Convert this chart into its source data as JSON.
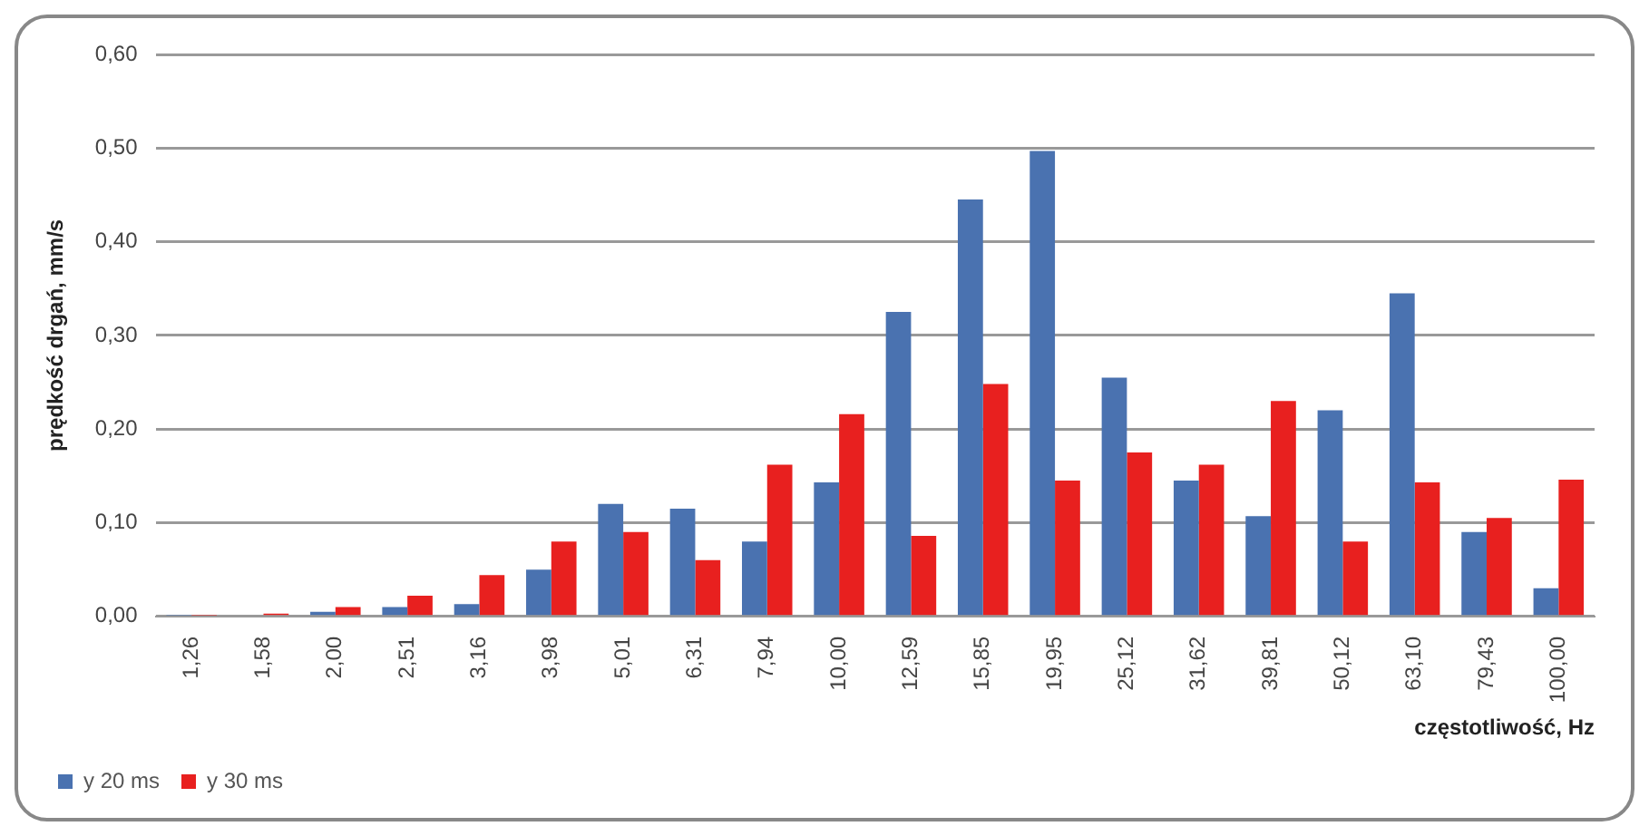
{
  "chart_data": {
    "type": "bar",
    "xlabel": "częstotliwość, Hz",
    "ylabel": "prędkość drgań, mm/s",
    "categories": [
      "1,26",
      "1,58",
      "2,00",
      "2,51",
      "3,16",
      "3,98",
      "5,01",
      "6,31",
      "7,94",
      "10,00",
      "12,59",
      "15,85",
      "19,95",
      "25,12",
      "31,62",
      "39,81",
      "50,12",
      "63,10",
      "79,43",
      "100,00"
    ],
    "series": [
      {
        "name": "y 20 ms",
        "color": "#4a72b0",
        "values": [
          0.001,
          null,
          0.005,
          0.01,
          0.013,
          0.05,
          0.12,
          0.115,
          0.08,
          0.143,
          0.325,
          0.445,
          0.497,
          0.255,
          0.145,
          0.107,
          0.22,
          0.345,
          0.09,
          0.03
        ]
      },
      {
        "name": "y 30 ms",
        "color": "#e8201f",
        "values": [
          0.001,
          0.003,
          0.01,
          0.022,
          0.044,
          0.08,
          0.09,
          0.06,
          0.162,
          0.216,
          0.086,
          0.248,
          0.145,
          0.175,
          0.162,
          0.23,
          0.08,
          0.143,
          0.105,
          0.146
        ]
      }
    ],
    "ylim": [
      0,
      0.6
    ],
    "yticks": [
      {
        "value": 0,
        "label": "0,00"
      },
      {
        "value": 0.1,
        "label": "0,10"
      },
      {
        "value": 0.2,
        "label": "0,20"
      },
      {
        "value": 0.3,
        "label": "0,30"
      },
      {
        "value": 0.4,
        "label": "0,40"
      },
      {
        "value": 0.5,
        "label": "0,50"
      },
      {
        "value": 0.6,
        "label": "0,60"
      }
    ],
    "grid": "y",
    "legend": "bottom left"
  }
}
